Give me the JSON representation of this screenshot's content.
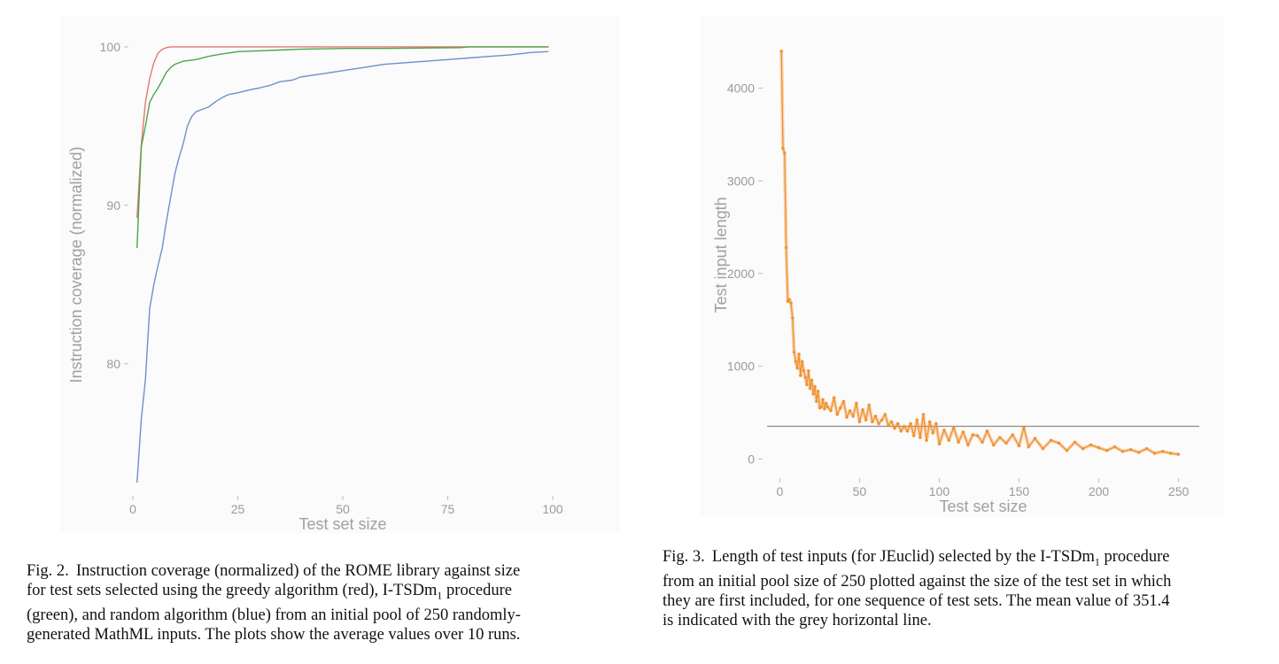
{
  "figures": [
    {
      "caption_lines": [
        {
          "prefix": "Fig. 2.",
          "text": "Instruction coverage (normalized) of the ROME library against size"
        },
        {
          "text": "for test sets selected using the greedy algorithm (red), I-TSDm",
          "sub": "1",
          "after": " procedure"
        },
        {
          "text": "(green), and random algorithm (blue) from an initial pool of 250 randomly-"
        },
        {
          "text": "generated MathML inputs. The plots show the average values over 10 runs."
        }
      ],
      "chart_data": {
        "type": "line",
        "xlabel": "Test set size",
        "ylabel": "Instruction coverage (normalized)",
        "x_ticks": [
          "0",
          "25",
          "50",
          "75",
          "100"
        ],
        "y_ticks": [
          "80",
          "90",
          "100"
        ],
        "xlim": [
          0,
          100
        ],
        "ylim": [
          72,
          100.5
        ],
        "grid": false,
        "colors": {
          "red": "#e8766d",
          "green": "#4ca64c",
          "blue": "#6f8fc9"
        },
        "series": [
          {
            "color": "red",
            "x": [
              1,
              2,
              3,
              4,
              5,
              6,
              7,
              8,
              9,
              10,
              15,
              20,
              30,
              50,
              78,
              80,
              99
            ],
            "y": [
              89.2,
              93.8,
              96.5,
              98.0,
              99.0,
              99.6,
              99.85,
              99.95,
              100,
              100,
              100,
              100,
              100,
              100,
              100,
              100,
              100
            ]
          },
          {
            "color": "green",
            "x": [
              1,
              2,
              3,
              4,
              5,
              6,
              7,
              8,
              9,
              10,
              12,
              15,
              18,
              20,
              25,
              30,
              35,
              40,
              50,
              60,
              78,
              80,
              99
            ],
            "y": [
              87.3,
              93.7,
              95.0,
              96.5,
              97.0,
              97.4,
              97.9,
              98.4,
              98.7,
              98.9,
              99.1,
              99.2,
              99.4,
              99.5,
              99.7,
              99.75,
              99.8,
              99.85,
              99.9,
              99.9,
              99.95,
              100,
              100
            ]
          },
          {
            "color": "blue",
            "x": [
              1,
              2,
              3,
              4,
              5,
              6,
              7,
              8,
              9,
              10,
              11,
              12,
              13,
              14,
              15,
              16,
              18,
              20,
              22,
              23,
              25,
              28,
              30,
              33,
              35,
              38,
              40,
              45,
              50,
              55,
              60,
              65,
              70,
              75,
              80,
              85,
              90,
              95,
              99
            ],
            "y": [
              72.5,
              76.5,
              79.0,
              83.5,
              85.0,
              86.2,
              87.3,
              89.0,
              90.5,
              92.0,
              93.0,
              93.9,
              95.0,
              95.6,
              95.9,
              96.0,
              96.2,
              96.6,
              96.9,
              97.0,
              97.1,
              97.3,
              97.4,
              97.6,
              97.8,
              97.9,
              98.1,
              98.3,
              98.5,
              98.7,
              98.9,
              99.0,
              99.1,
              99.2,
              99.3,
              99.4,
              99.5,
              99.65,
              99.7
            ]
          }
        ]
      }
    },
    {
      "caption_lines": [
        {
          "prefix": "Fig. 3.",
          "text": "Length of test inputs (for JEuclid) selected by the I-TSDm",
          "sub": "1",
          "after": " procedure"
        },
        {
          "text": "from an initial pool size of 250 plotted against the size of the test set in which"
        },
        {
          "text": "they are first included, for one sequence of test sets. The mean value of 351.4"
        },
        {
          "text": "is indicated with the grey horizontal line."
        }
      ],
      "chart_data": {
        "type": "line",
        "xlabel": "Test set size",
        "ylabel": "Test input length",
        "x_ticks": [
          "0",
          "50",
          "100",
          "150",
          "200",
          "250"
        ],
        "y_ticks": [
          "0",
          "1000",
          "2000",
          "3000",
          "4000"
        ],
        "xlim": [
          -8,
          263
        ],
        "ylim": [
          -150,
          4550
        ],
        "grid": false,
        "mean_line": 351.4,
        "colors": {
          "line": "#f0902e",
          "mean": "#8c8c8c"
        },
        "series": [
          {
            "color": "line",
            "x": [
              1,
              2,
              3,
              4,
              5,
              6,
              7,
              8,
              9,
              10,
              11,
              12,
              13,
              14,
              15,
              16,
              17,
              18,
              19,
              20,
              21,
              22,
              23,
              24,
              25,
              26,
              27,
              28,
              29,
              30,
              32,
              34,
              36,
              38,
              40,
              42,
              44,
              46,
              48,
              50,
              52,
              54,
              56,
              58,
              60,
              62,
              64,
              66,
              68,
              70,
              72,
              74,
              76,
              78,
              80,
              82,
              84,
              86,
              88,
              90,
              92,
              94,
              96,
              98,
              100,
              103,
              106,
              109,
              112,
              115,
              118,
              121,
              124,
              127,
              130,
              134,
              138,
              142,
              146,
              150,
              153,
              156,
              160,
              165,
              170,
              175,
              180,
              185,
              190,
              195,
              200,
              205,
              210,
              215,
              220,
              225,
              230,
              235,
              240,
              245,
              250
            ],
            "y": [
              4400,
              3350,
              3300,
              2280,
              1700,
              1720,
              1680,
              1520,
              1150,
              1050,
              980,
              1130,
              900,
              1050,
              950,
              880,
              800,
              950,
              760,
              850,
              700,
              780,
              620,
              730,
              550,
              560,
              640,
              540,
              600,
              560,
              520,
              660,
              480,
              550,
              620,
              450,
              520,
              460,
              600,
              400,
              530,
              420,
              580,
              400,
              460,
              380,
              420,
              480,
              360,
              400,
              330,
              380,
              300,
              350,
              300,
              380,
              250,
              420,
              230,
              480,
              200,
              400,
              280,
              380,
              160,
              310,
              200,
              340,
              180,
              290,
              150,
              260,
              250,
              180,
              300,
              150,
              230,
              170,
              260,
              140,
              340,
              130,
              220,
              110,
              200,
              170,
              90,
              180,
              110,
              150,
              120,
              90,
              130,
              80,
              100,
              70,
              110,
              60,
              80,
              60,
              50
            ]
          }
        ]
      }
    }
  ]
}
